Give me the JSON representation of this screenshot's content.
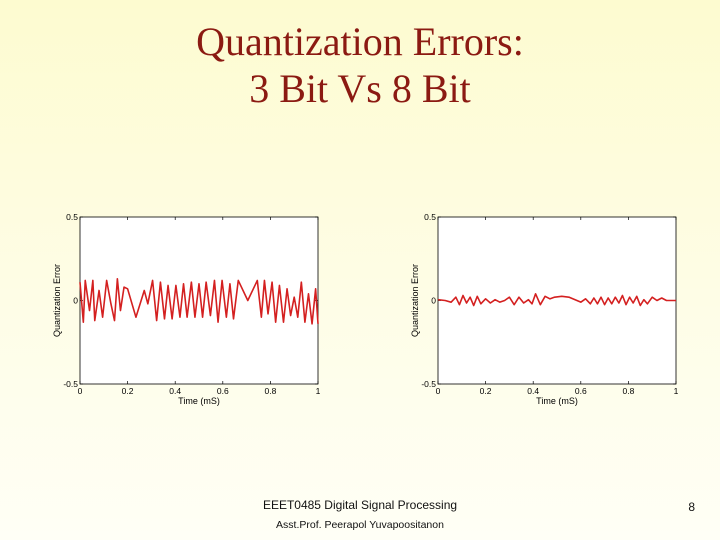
{
  "slide": {
    "title_line1": "Quantization Errors:",
    "title_line2": "3 Bit Vs 8 Bit",
    "footer_course": "EEET0485 Digital Signal Processing",
    "footer_author": "Asst.Prof. Peerapol Yuvapoositanon",
    "page_number": "8"
  },
  "chart_data": [
    {
      "type": "line",
      "xlabel": "Time (mS)",
      "ylabel": "Quantization Error",
      "xlim": [
        0,
        1
      ],
      "ylim": [
        -0.5,
        0.5
      ],
      "xticks": [
        "0",
        "0.2",
        "0.4",
        "0.6",
        "0.8",
        "1"
      ],
      "yticks": [
        "-0.5",
        "0",
        "0.5"
      ],
      "color": "#d42020",
      "series": [
        {
          "x": [
            0,
            0.014,
            0.022,
            0.04,
            0.054,
            0.062,
            0.08,
            0.095,
            0.112,
            0.13,
            0.145,
            0.157,
            0.17,
            0.185,
            0.2,
            0.235,
            0.27,
            0.285,
            0.305,
            0.322,
            0.338,
            0.355,
            0.37,
            0.387,
            0.403,
            0.42,
            0.435,
            0.45,
            0.468,
            0.483,
            0.5,
            0.515,
            0.53,
            0.548,
            0.565,
            0.58,
            0.597,
            0.615,
            0.63,
            0.645,
            0.665,
            0.705,
            0.745,
            0.762,
            0.775,
            0.79,
            0.807,
            0.822,
            0.838,
            0.855,
            0.87,
            0.885,
            0.9,
            0.915,
            0.93,
            0.945,
            0.96,
            0.975,
            0.99,
            1.0
          ],
          "y": [
            0.11,
            -0.13,
            0.12,
            -0.06,
            0.12,
            -0.12,
            0.06,
            -0.1,
            0.12,
            -0.02,
            -0.12,
            0.13,
            -0.06,
            0.08,
            0.07,
            -0.1,
            0.06,
            -0.02,
            0.12,
            -0.12,
            0.11,
            -0.11,
            0.09,
            -0.11,
            0.09,
            -0.1,
            0.1,
            -0.1,
            0.11,
            -0.1,
            0.1,
            -0.1,
            0.11,
            -0.09,
            0.12,
            -0.13,
            0.12,
            -0.1,
            0.1,
            -0.11,
            0.12,
            0.0,
            0.12,
            -0.1,
            0.12,
            -0.08,
            0.11,
            -0.13,
            0.09,
            -0.13,
            0.07,
            -0.09,
            0.02,
            -0.1,
            0.11,
            -0.13,
            0.04,
            -0.14,
            0.07,
            -0.14
          ]
        }
      ]
    },
    {
      "type": "line",
      "xlabel": "Time (mS)",
      "ylabel": "Quantization Error",
      "xlim": [
        0,
        1
      ],
      "ylim": [
        -0.5,
        0.5
      ],
      "xticks": [
        "0",
        "0.2",
        "0.4",
        "0.6",
        "0.8",
        "1"
      ],
      "yticks": [
        "-0.5",
        "0",
        "0.5"
      ],
      "color": "#d42020",
      "series": [
        {
          "x": [
            0,
            0.03,
            0.055,
            0.075,
            0.09,
            0.105,
            0.12,
            0.135,
            0.15,
            0.165,
            0.18,
            0.2,
            0.22,
            0.24,
            0.26,
            0.28,
            0.3,
            0.32,
            0.34,
            0.36,
            0.38,
            0.395,
            0.41,
            0.43,
            0.45,
            0.47,
            0.49,
            0.52,
            0.55,
            0.6,
            0.62,
            0.64,
            0.655,
            0.67,
            0.685,
            0.7,
            0.715,
            0.73,
            0.745,
            0.76,
            0.775,
            0.79,
            0.805,
            0.82,
            0.835,
            0.85,
            0.865,
            0.88,
            0.9,
            0.92,
            0.94,
            0.96,
            1.0
          ],
          "y": [
            0.005,
            0.0,
            -0.01,
            0.02,
            -0.025,
            0.03,
            -0.015,
            0.02,
            -0.03,
            0.025,
            -0.02,
            0.01,
            -0.015,
            0.005,
            -0.01,
            0.0,
            0.02,
            -0.025,
            0.02,
            -0.015,
            0.005,
            -0.02,
            0.04,
            -0.025,
            0.025,
            0.01,
            0.02,
            0.025,
            0.02,
            -0.01,
            0.01,
            -0.02,
            0.015,
            -0.02,
            0.02,
            -0.025,
            0.015,
            -0.02,
            0.02,
            -0.015,
            0.03,
            -0.025,
            0.02,
            -0.015,
            0.025,
            -0.03,
            0.005,
            -0.02,
            0.02,
            0.0,
            0.015,
            0.0,
            0.0
          ]
        }
      ]
    }
  ]
}
